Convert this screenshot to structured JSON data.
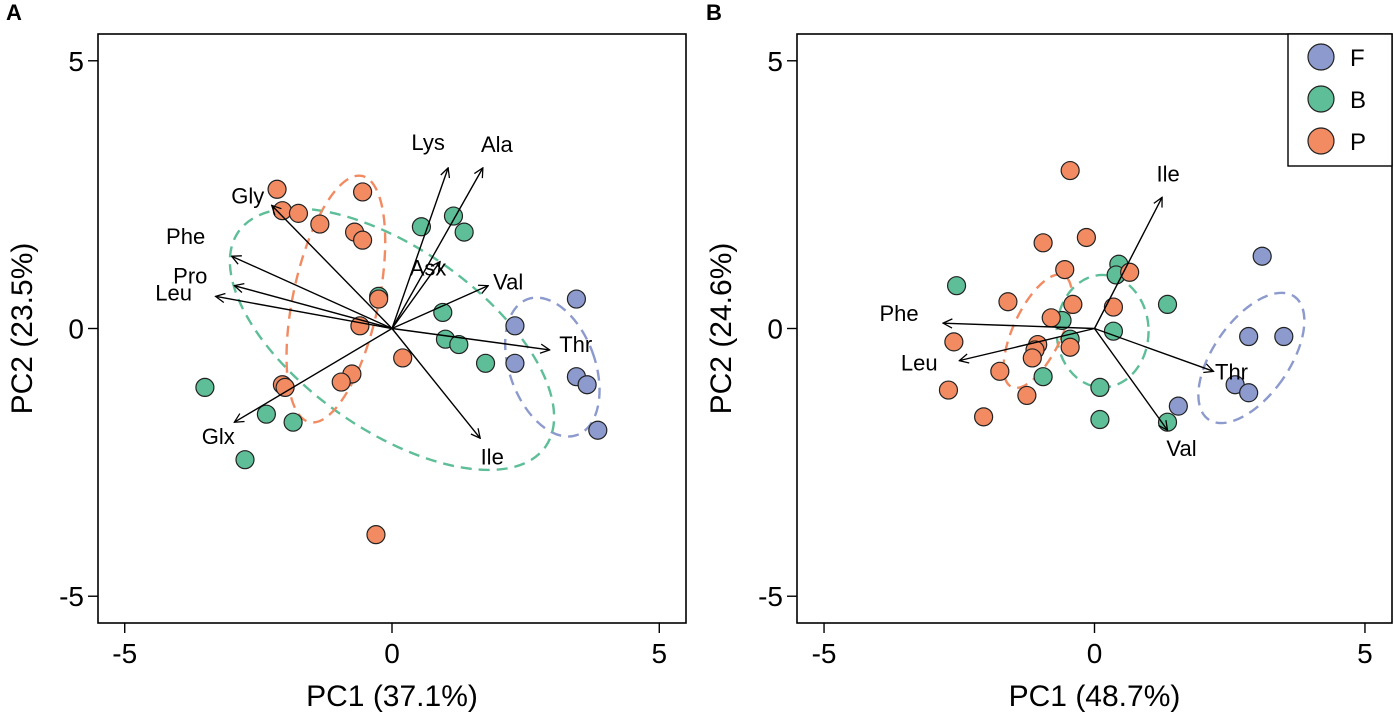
{
  "colors": {
    "F": "#8c9acd",
    "B": "#5dbe97",
    "P": "#f28b62"
  },
  "legend": [
    {
      "key": "F",
      "label": "F"
    },
    {
      "key": "B",
      "label": "B"
    },
    {
      "key": "P",
      "label": "P"
    }
  ],
  "chart_data": [
    {
      "panel": "A",
      "type": "scatter",
      "subtype": "PCA biplot",
      "xlabel": "PC1 (37.1%)",
      "ylabel": "PC2 (23.5%)",
      "xlim": [
        -5.5,
        5.5
      ],
      "ylim": [
        -5.5,
        5.5
      ],
      "xticks": [
        "-5",
        "0",
        "5"
      ],
      "yticks": [
        "5",
        "0",
        "-5"
      ],
      "series": [
        {
          "name": "F",
          "points": [
            [
              2.3,
              0.05
            ],
            [
              2.3,
              -0.65
            ],
            [
              3.45,
              0.55
            ],
            [
              3.45,
              -0.9
            ],
            [
              3.65,
              -1.05
            ],
            [
              3.85,
              -1.9
            ]
          ]
        },
        {
          "name": "B",
          "points": [
            [
              0.55,
              1.9
            ],
            [
              1.15,
              2.1
            ],
            [
              1.35,
              1.8
            ],
            [
              -0.25,
              0.6
            ],
            [
              0.95,
              0.3
            ],
            [
              1.0,
              -0.2
            ],
            [
              1.25,
              -0.3
            ],
            [
              1.75,
              -0.65
            ],
            [
              -3.5,
              -1.1
            ],
            [
              -2.35,
              -1.6
            ],
            [
              -1.85,
              -1.75
            ],
            [
              -2.75,
              -2.45
            ]
          ]
        },
        {
          "name": "P",
          "points": [
            [
              -2.15,
              2.6
            ],
            [
              -2.05,
              2.2
            ],
            [
              -1.75,
              2.15
            ],
            [
              -1.35,
              1.95
            ],
            [
              -0.55,
              2.55
            ],
            [
              -0.7,
              1.8
            ],
            [
              -0.55,
              1.65
            ],
            [
              -0.25,
              0.55
            ],
            [
              -0.6,
              0.05
            ],
            [
              0.2,
              -0.55
            ],
            [
              -0.75,
              -0.85
            ],
            [
              -0.95,
              -1.0
            ],
            [
              -2.05,
              -1.05
            ],
            [
              -2.0,
              -1.1
            ],
            [
              -0.3,
              -3.85
            ]
          ]
        }
      ],
      "vectors": [
        {
          "label": "Lys",
          "x": 1.05,
          "y": 3.0
        },
        {
          "label": "Ala",
          "x": 1.7,
          "y": 3.0
        },
        {
          "label": "Gly",
          "x": -2.25,
          "y": 2.3
        },
        {
          "label": "Phe",
          "x": -3.0,
          "y": 1.35
        },
        {
          "label": "Pro",
          "x": -2.95,
          "y": 0.8
        },
        {
          "label": "Leu",
          "x": -3.3,
          "y": 0.6
        },
        {
          "label": "Asx",
          "x": 0.9,
          "y": 1.25
        },
        {
          "label": "Val",
          "x": 1.8,
          "y": 0.8
        },
        {
          "label": "Thr",
          "x": 2.95,
          "y": -0.4
        },
        {
          "label": "Glx",
          "x": -2.95,
          "y": -1.75
        },
        {
          "label": "Ile",
          "x": 1.65,
          "y": -2.05
        }
      ],
      "ellipses": [
        {
          "group": "F",
          "cx": 3.0,
          "cy": -0.72,
          "rx": 0.8,
          "ry": 1.35,
          "angle": -20
        },
        {
          "group": "B",
          "cx": 0.0,
          "cy": -0.2,
          "rx": 1.7,
          "ry": 3.5,
          "angle": -55
        },
        {
          "group": "P",
          "cx": -1.05,
          "cy": 0.55,
          "rx": 0.8,
          "ry": 2.35,
          "angle": 12
        }
      ]
    },
    {
      "panel": "B",
      "type": "scatter",
      "subtype": "PCA biplot",
      "xlabel": "PC1 (48.7%)",
      "ylabel": "PC2 (24.6%)",
      "xlim": [
        -5.5,
        5.5
      ],
      "ylim": [
        -5.5,
        5.5
      ],
      "xticks": [
        "-5",
        "0",
        "5"
      ],
      "yticks": [
        "5",
        "0",
        "-5"
      ],
      "series": [
        {
          "name": "F",
          "points": [
            [
              3.1,
              1.35
            ],
            [
              3.5,
              -0.15
            ],
            [
              2.85,
              -0.15
            ],
            [
              2.6,
              -1.05
            ],
            [
              2.85,
              -1.2
            ],
            [
              1.55,
              -1.45
            ]
          ]
        },
        {
          "name": "B",
          "points": [
            [
              -2.55,
              0.8
            ],
            [
              0.45,
              1.2
            ],
            [
              0.4,
              1.0
            ],
            [
              1.35,
              0.45
            ],
            [
              -0.6,
              0.15
            ],
            [
              0.35,
              -0.05
            ],
            [
              -0.45,
              -0.2
            ],
            [
              -0.95,
              -0.9
            ],
            [
              0.1,
              -1.1
            ],
            [
              0.1,
              -1.7
            ],
            [
              1.35,
              -1.75
            ]
          ]
        },
        {
          "name": "P",
          "points": [
            [
              -0.45,
              2.95
            ],
            [
              -0.95,
              1.6
            ],
            [
              -0.15,
              1.7
            ],
            [
              -0.55,
              1.1
            ],
            [
              0.65,
              1.05
            ],
            [
              -1.6,
              0.5
            ],
            [
              -0.4,
              0.45
            ],
            [
              0.35,
              0.4
            ],
            [
              -0.8,
              0.2
            ],
            [
              -2.6,
              -0.25
            ],
            [
              -1.05,
              -0.3
            ],
            [
              -1.1,
              -0.4
            ],
            [
              -0.45,
              -0.35
            ],
            [
              -1.15,
              -0.55
            ],
            [
              -1.75,
              -0.8
            ],
            [
              -2.7,
              -1.15
            ],
            [
              -1.25,
              -1.25
            ],
            [
              -2.05,
              -1.65
            ]
          ]
        }
      ],
      "vectors": [
        {
          "label": "Ile",
          "x": 1.25,
          "y": 2.45
        },
        {
          "label": "Phe",
          "x": -2.8,
          "y": 0.1
        },
        {
          "label": "Leu",
          "x": -2.5,
          "y": -0.6
        },
        {
          "label": "Thr",
          "x": 2.2,
          "y": -0.8
        },
        {
          "label": "Val",
          "x": 1.35,
          "y": -1.9
        }
      ],
      "ellipses": [
        {
          "group": "F",
          "cx": 2.9,
          "cy": -0.55,
          "rx": 0.7,
          "ry": 1.4,
          "angle": 35
        },
        {
          "group": "B",
          "cx": 0.15,
          "cy": -0.05,
          "rx": 0.85,
          "ry": 1.05,
          "angle": 0
        },
        {
          "group": "P",
          "cx": -1.05,
          "cy": -0.05,
          "rx": 0.45,
          "ry": 1.15,
          "angle": 25
        }
      ]
    }
  ]
}
